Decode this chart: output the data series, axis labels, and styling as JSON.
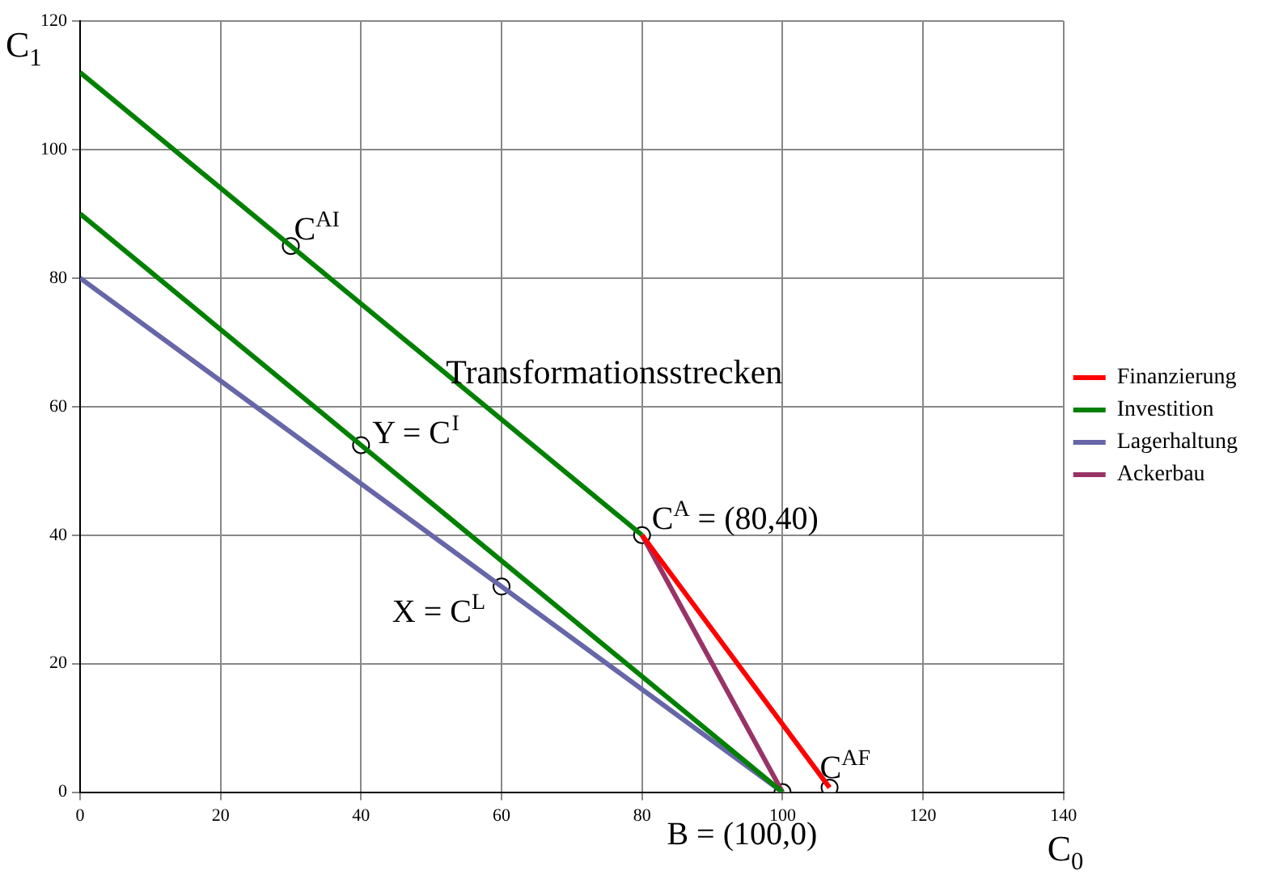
{
  "chart_data": {
    "type": "line",
    "xlabel": "C$_{0}$",
    "ylabel": "C$_{1}$",
    "xlim": [
      0,
      140
    ],
    "ylim": [
      0,
      120
    ],
    "xticks": [
      0,
      20,
      40,
      60,
      80,
      100,
      120,
      140
    ],
    "yticks": [
      0,
      20,
      40,
      60,
      80,
      100,
      120
    ],
    "grid": true,
    "legend": "right",
    "line_style": "solid",
    "series": [
      {
        "name": "Finanzierung",
        "color": "#ff0000",
        "x": [
          80,
          106.7
        ],
        "values": [
          40,
          0.7
        ],
        "marker": "none"
      },
      {
        "name": "Investition",
        "color": "#008000",
        "x": [
          0,
          80
        ],
        "values": [
          112,
          40
        ],
        "marker": "none"
      },
      {
        "color": "#008000",
        "x": [
          0,
          100
        ],
        "values": [
          90,
          0
        ],
        "marker": "none"
      },
      {
        "name": "Lagerhaltung",
        "color": "#6666a8",
        "x": [
          0,
          100
        ],
        "values": [
          80,
          0
        ],
        "marker": "none"
      },
      {
        "name": "Ackerbau",
        "color": "#993366",
        "x": [
          80,
          100
        ],
        "values": [
          40,
          0
        ],
        "marker": "none"
      },
      {
        "type": "scatter",
        "color": "#000000",
        "x": [
          30,
          40,
          60,
          80,
          100,
          106.7
        ],
        "values": [
          85,
          54,
          32,
          40,
          0,
          0.7
        ],
        "marker": "circle"
      }
    ],
    "annotations": [
      {
        "text": "C$^{AI}$",
        "x": 30,
        "y": 85
      },
      {
        "text": "Y = C$^{I}$",
        "x": 40,
        "y": 54
      },
      {
        "text": "X = C$^{L}$",
        "x": 60,
        "y": 32
      },
      {
        "text": "C$^{A}$ = (80,40)",
        "x": 80,
        "y": 40
      },
      {
        "text": "B = (100,0)",
        "x": 100,
        "y": 0
      },
      {
        "text": "C$^{AF}$",
        "x": 106.7,
        "y": 0.7
      },
      "Transformationsstrecken"
    ]
  }
}
